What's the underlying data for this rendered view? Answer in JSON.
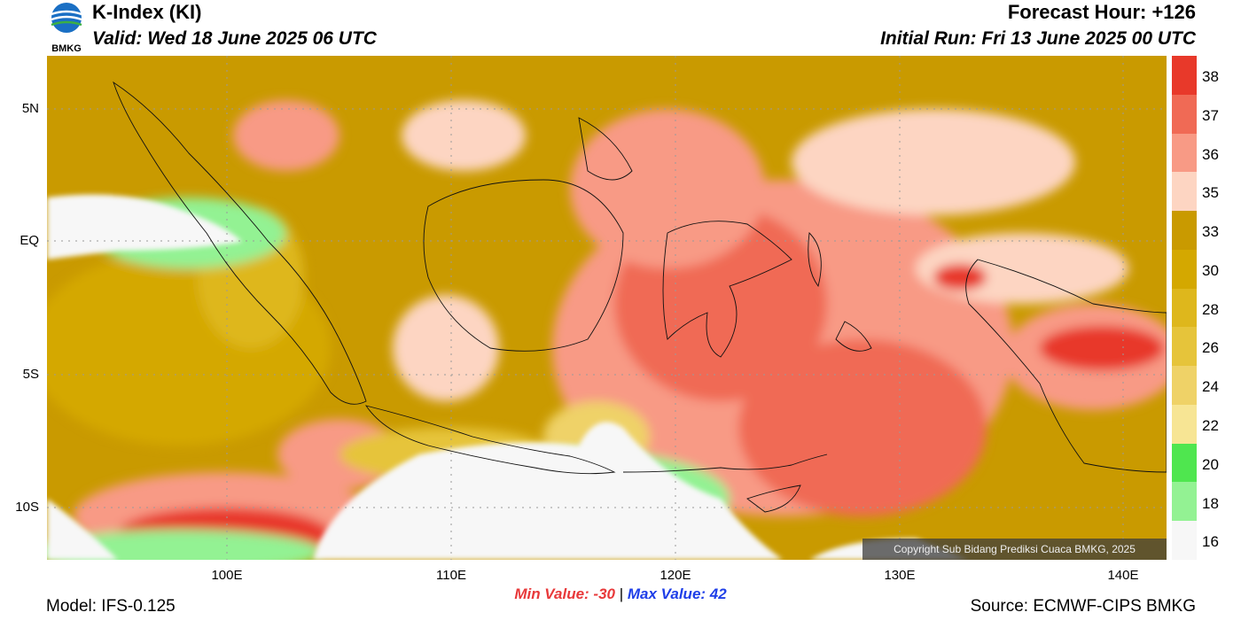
{
  "header": {
    "title": "K-Index (KI)",
    "valid": "Valid: Wed 18 June 2025 06 UTC",
    "forecast_hour": "Forecast Hour: +126",
    "initial_run": "Initial Run: Fri 13 June 2025 00 UTC"
  },
  "logo": {
    "text": "BMKG"
  },
  "axes": {
    "lat_labels": [
      "5N",
      "EQ",
      "5S",
      "10S"
    ],
    "lon_labels": [
      "100E",
      "110E",
      "120E",
      "130E",
      "140E"
    ]
  },
  "colorbar": {
    "labels": [
      "38",
      "37",
      "36",
      "35",
      "33",
      "30",
      "28",
      "26",
      "24",
      "22",
      "20",
      "18",
      "16"
    ],
    "colors": [
      "#e8392a",
      "#f06a55",
      "#f89a85",
      "#fdd5c2",
      "#c99a00",
      "#d4a800",
      "#deb71c",
      "#e6c43a",
      "#efd267",
      "#f7e594",
      "#4fe64f",
      "#93f293",
      "#f7f7f7"
    ]
  },
  "stats": {
    "min_label": "Min Value: -30",
    "separator": "|",
    "max_label": "Max Value:  42"
  },
  "footer": {
    "model": "Model: IFS-0.125",
    "source": "Source: ECMWF-CIPS BMKG"
  },
  "copyright": "Copyright Sub Bidang Prediksi Cuaca BMKG, 2025"
}
